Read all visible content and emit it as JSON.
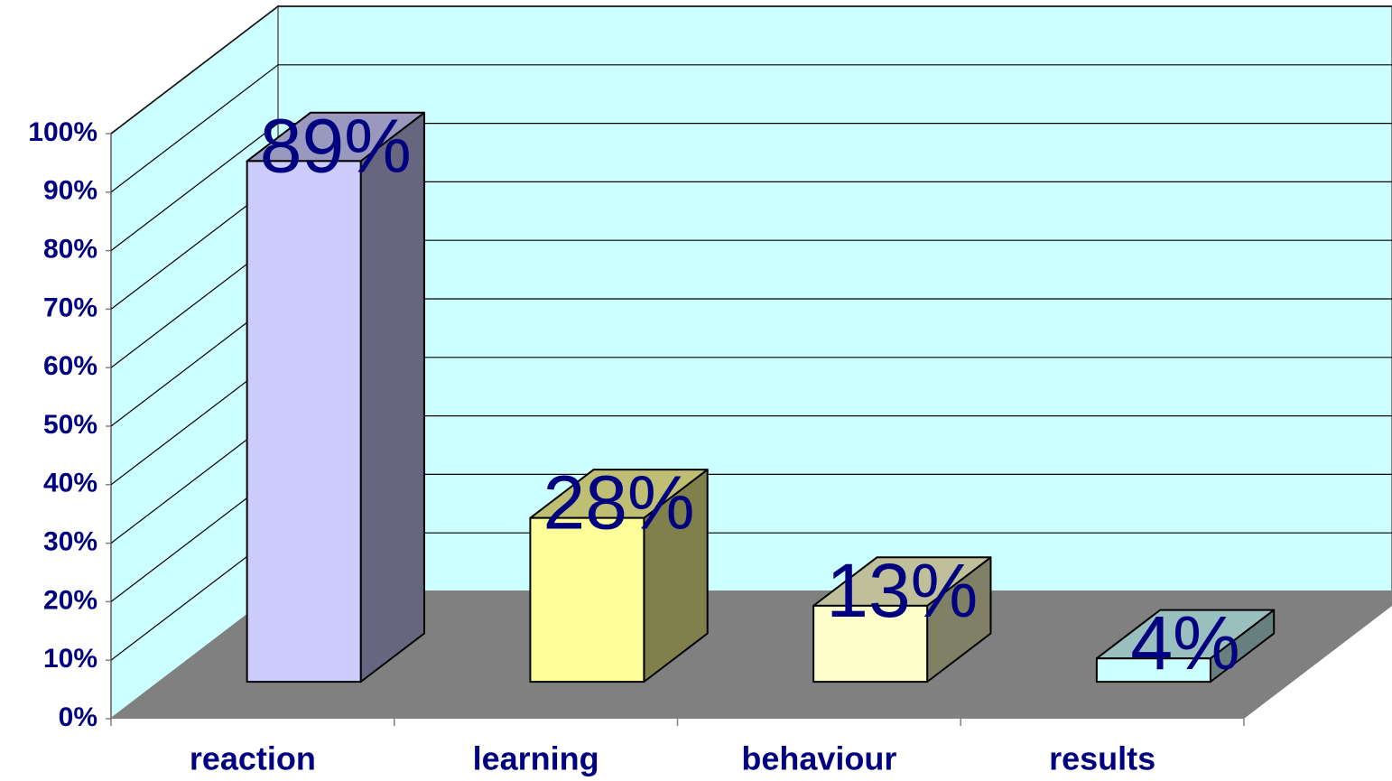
{
  "chart_data": {
    "type": "bar3d",
    "categories": [
      "reaction",
      "learning",
      "behaviour",
      "results"
    ],
    "values": [
      89,
      28,
      13,
      4
    ],
    "value_labels": [
      "89%",
      "28%",
      "13%",
      "4%"
    ],
    "colors": [
      "#ccccff",
      "#ffff99",
      "#ffffcc",
      "#ccffff"
    ],
    "ylim": [
      0,
      100
    ],
    "yticks": [
      {
        "value": 0,
        "label": "0%"
      },
      {
        "value": 10,
        "label": "10%"
      },
      {
        "value": 20,
        "label": "20%"
      },
      {
        "value": 30,
        "label": "30%"
      },
      {
        "value": 40,
        "label": "40%"
      },
      {
        "value": 50,
        "label": "50%"
      },
      {
        "value": 60,
        "label": "60%"
      },
      {
        "value": 70,
        "label": "70%"
      },
      {
        "value": 80,
        "label": "80%"
      },
      {
        "value": 90,
        "label": "90%"
      },
      {
        "value": 100,
        "label": "100%"
      }
    ],
    "grid": true
  }
}
